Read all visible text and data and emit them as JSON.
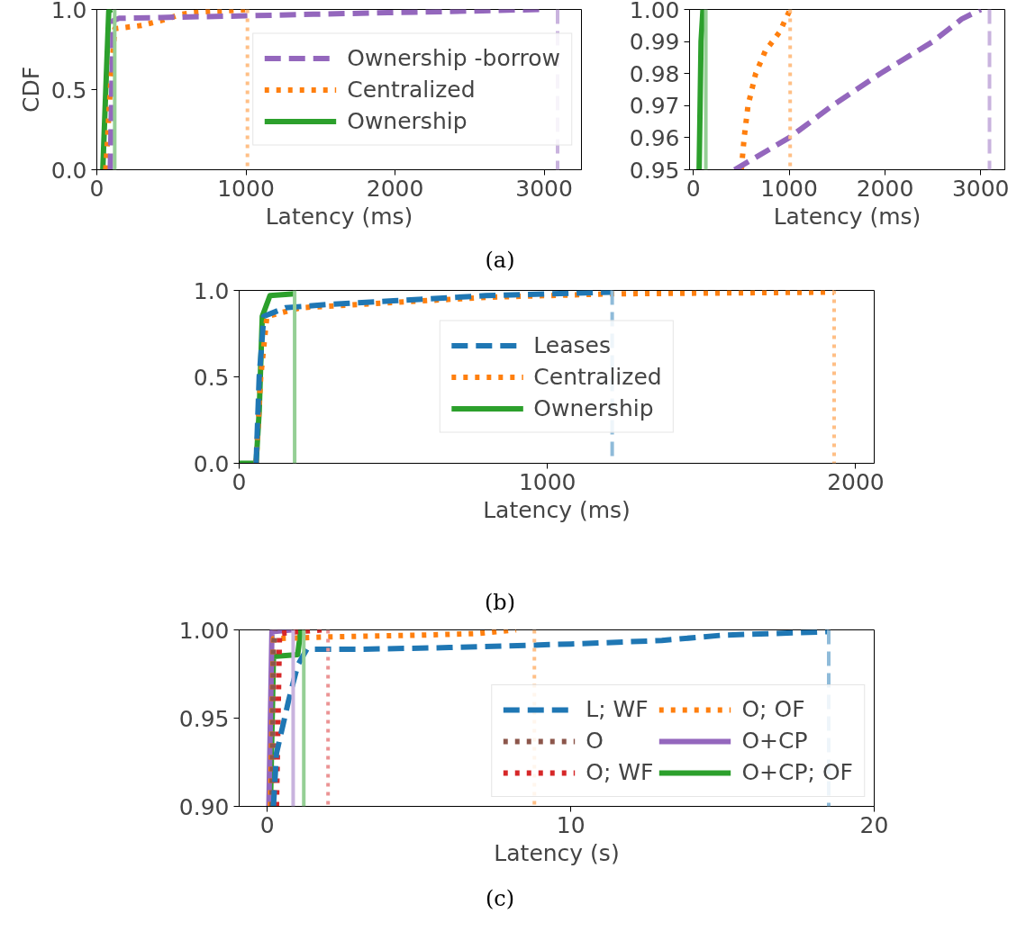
{
  "chart_data": [
    {
      "type": "line",
      "ylabel": "CDF",
      "xlabel": "Latency (ms)",
      "xlim": [
        0,
        3250
      ],
      "ylim": [
        0,
        1
      ],
      "xticks": [
        0,
        1000,
        2000,
        3000
      ],
      "yticks": [
        {
          "value": 0,
          "label": "0.0"
        },
        {
          "value": 0.5,
          "label": "0.5"
        },
        {
          "value": 1,
          "label": "1.0"
        }
      ],
      "legend": "right",
      "annotations": [
        "(a)"
      ],
      "series": [
        {
          "name": "Ownership -borrow",
          "color": "#9467bd",
          "line_style": "dashed",
          "x": [
            90,
            100,
            110,
            150,
            430,
            1000,
            1450,
            1950,
            2500,
            2800,
            3000
          ],
          "values": [
            0,
            0.5,
            0.93,
            0.945,
            0.95,
            0.96,
            0.97,
            0.98,
            0.99,
            0.997,
            1.0
          ]
        },
        {
          "name": "Centralized",
          "color": "#ff7f0e",
          "line_style": "dotted",
          "x": [
            60,
            90,
            120,
            300,
            430,
            500,
            530,
            570,
            650,
            750,
            900,
            1010
          ],
          "values": [
            0,
            0.5,
            0.88,
            0.9,
            0.93,
            0.95,
            0.96,
            0.97,
            0.98,
            0.987,
            0.993,
            1.0
          ]
        },
        {
          "name": "Ownership",
          "color": "#2ca02c",
          "line_style": "solid",
          "x": [
            40,
            60,
            80,
            100
          ],
          "values": [
            0,
            0.5,
            0.99,
            1.0
          ]
        }
      ],
      "ref_lines": [
        {
          "axis": "x",
          "value": 120,
          "color": "#95cf95",
          "line_style": "solid"
        },
        {
          "axis": "x",
          "value": 1010,
          "color": "#ffbf86",
          "line_style": "dotted"
        },
        {
          "axis": "x",
          "value": 3090,
          "color": "#c9b3de",
          "line_style": "dashed"
        }
      ]
    },
    {
      "type": "line",
      "xlabel": "Latency (ms)",
      "xlim": [
        -40,
        3250
      ],
      "ylim": [
        0.95,
        1.0
      ],
      "xticks": [
        0,
        1000,
        2000,
        3000
      ],
      "yticks": [
        0.95,
        0.96,
        0.97,
        0.98,
        0.99,
        {
          "value": 1.0,
          "label": "1.00"
        }
      ],
      "series": [
        {
          "color": "#9467bd",
          "line_style": "dashed",
          "x": [
            430,
            1000,
            1450,
            1950,
            2500,
            2800,
            3000
          ],
          "values": [
            0.95,
            0.96,
            0.97,
            0.98,
            0.99,
            0.997,
            1.0
          ]
        },
        {
          "color": "#ff7f0e",
          "line_style": "dotted",
          "x": [
            500,
            530,
            570,
            650,
            750,
            900,
            1010
          ],
          "values": [
            0.95,
            0.96,
            0.97,
            0.98,
            0.987,
            0.993,
            1.0
          ]
        },
        {
          "color": "#2ca02c",
          "line_style": "solid",
          "x": [
            60,
            80,
            100
          ],
          "values": [
            0.95,
            0.99,
            1.0
          ]
        }
      ],
      "ref_lines": [
        {
          "axis": "x",
          "value": 130,
          "color": "#95cf95",
          "line_style": "solid"
        },
        {
          "axis": "x",
          "value": 1010,
          "color": "#ffbf86",
          "line_style": "dotted"
        },
        {
          "axis": "x",
          "value": 3090,
          "color": "#c9b3de",
          "line_style": "dashed"
        }
      ]
    },
    {
      "type": "line",
      "xlabel": "Latency (ms)",
      "xlim": [
        0,
        2060
      ],
      "ylim": [
        0,
        1
      ],
      "xticks": [
        0,
        1000,
        2000
      ],
      "yticks": [
        {
          "value": 0,
          "label": "0.0"
        },
        {
          "value": 0.5,
          "label": "0.5"
        },
        {
          "value": 1,
          "label": "1.0"
        }
      ],
      "legend": "center",
      "annotations": [
        "(b)"
      ],
      "series": [
        {
          "name": "Leases",
          "color": "#1f77b4",
          "line_style": "dashed",
          "x": [
            55,
            65,
            80,
            150,
            300,
            500,
            800,
            1000,
            1210
          ],
          "values": [
            0,
            0.5,
            0.85,
            0.9,
            0.92,
            0.94,
            0.97,
            0.98,
            0.99
          ]
        },
        {
          "name": "Centralized",
          "color": "#ff7f0e",
          "line_style": "dotted",
          "x": [
            55,
            70,
            90,
            200,
            500,
            800,
            1200,
            1930
          ],
          "values": [
            0,
            0.5,
            0.85,
            0.9,
            0.93,
            0.96,
            0.98,
            0.99
          ]
        },
        {
          "name": "Ownership",
          "color": "#2ca02c",
          "line_style": "solid",
          "x": [
            0,
            55,
            65,
            75,
            100,
            180
          ],
          "values": [
            0,
            0,
            0.3,
            0.85,
            0.97,
            0.98
          ]
        }
      ],
      "ref_lines": [
        {
          "axis": "x",
          "value": 180,
          "color": "#95cf95",
          "line_style": "solid"
        },
        {
          "axis": "x",
          "value": 1210,
          "color": "#8fbbd9",
          "line_style": "dashed"
        },
        {
          "axis": "x",
          "value": 1930,
          "color": "#ffbf86",
          "line_style": "dotted"
        }
      ]
    },
    {
      "type": "line",
      "xlabel": "Latency (s)",
      "xlim": [
        -0.93,
        20
      ],
      "ylim": [
        0.9,
        1.0
      ],
      "xticks": [
        0,
        10,
        20
      ],
      "yticks": [
        {
          "value": 0.9,
          "label": "0.90"
        },
        0.95,
        {
          "value": 1.0,
          "label": "1.00"
        }
      ],
      "legend": "bottom right",
      "annotations": [
        "(c)"
      ],
      "series": [
        {
          "name": "L; WF",
          "color": "#1f77b4",
          "line_style": "dashed",
          "x": [
            0.2,
            0.3,
            0.7,
            1.0,
            1.3,
            3,
            6,
            10,
            13,
            15,
            18.5
          ],
          "values": [
            0.9,
            0.93,
            0.96,
            0.98,
            0.989,
            0.989,
            0.99,
            0.992,
            0.994,
            0.997,
            0.999
          ]
        },
        {
          "name": "O",
          "color": "#8c564b",
          "line_style": "dotted",
          "x": [
            0.15,
            0.2,
            0.25
          ],
          "values": [
            0.9,
            0.99,
            1.0
          ]
        },
        {
          "name": "O; WF",
          "color": "#d62728",
          "line_style": "dotted",
          "x": [
            0.3,
            0.4,
            1.0,
            1.8
          ],
          "values": [
            0.9,
            0.998,
            0.999,
            1.0
          ]
        },
        {
          "name": "O; OF",
          "color": "#ff7f0e",
          "line_style": "dotted",
          "x": [
            0.1,
            0.2,
            2,
            5,
            7,
            8.2
          ],
          "values": [
            0.9,
            0.995,
            0.996,
            0.997,
            0.998,
            1.0
          ]
        },
        {
          "name": "O+CP",
          "color": "#9467bd",
          "line_style": "solid",
          "x": [
            0.05,
            0.15,
            0.8
          ],
          "values": [
            0.9,
            0.999,
            1.0
          ]
        },
        {
          "name": "O+CP; OF",
          "color": "#2ca02c",
          "line_style": "solid",
          "x": [
            0.1,
            0.2,
            1.0,
            1.1
          ],
          "values": [
            0.9,
            0.985,
            0.986,
            1.0
          ]
        }
      ],
      "ref_lines": [
        {
          "axis": "x",
          "value": 0.85,
          "color": "#c9b3de",
          "line_style": "solid"
        },
        {
          "axis": "x",
          "value": 1.2,
          "color": "#95cf95",
          "line_style": "solid"
        },
        {
          "axis": "x",
          "value": 2.0,
          "color": "#eb9394",
          "line_style": "dotted"
        },
        {
          "axis": "x",
          "value": 8.8,
          "color": "#ffbf86",
          "line_style": "dotted"
        },
        {
          "axis": "x",
          "value": 18.5,
          "color": "#8fbbd9",
          "line_style": "dashed"
        }
      ]
    }
  ]
}
